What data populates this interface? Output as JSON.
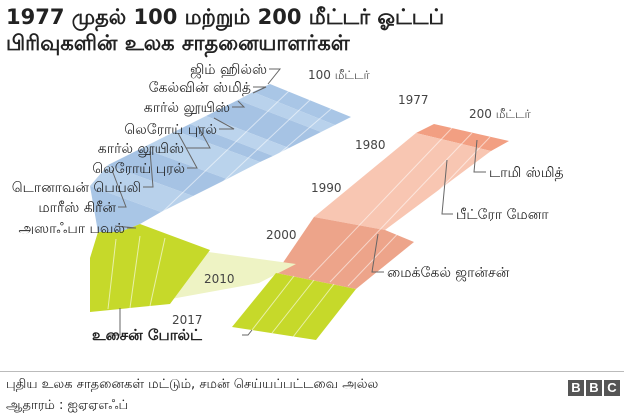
{
  "title": {
    "line1": "1977 முதல் 100 மற்றும் 200 மீட்டர் ஓட்டப்",
    "line2": "பிரிவுகளின் உலக சாதனையாளர்கள்"
  },
  "chart_data": {
    "type": "timeline",
    "years": {
      "top": "1977",
      "labels": [
        {
          "text": "1980",
          "value": 1980
        },
        {
          "text": "1990",
          "value": 1990
        },
        {
          "text": "2000",
          "value": 2000
        },
        {
          "text": "2010",
          "value": 2010
        },
        {
          "text": "2017",
          "value": 2017
        }
      ]
    },
    "series": [
      {
        "name": "100 மீட்டர்",
        "holders": [
          {
            "name": "ஜிம் ஹில்ஸ்"
          },
          {
            "name": "கேல்வின் ஸ்மித்"
          },
          {
            "name": "கார்ல் லூயிஸ்"
          },
          {
            "name": "லெரோய் புரல்"
          },
          {
            "name": "கார்ல் லூயிஸ்"
          },
          {
            "name": "லெரோய் புரல்"
          },
          {
            "name": "டொனாவன் பெய்லி"
          },
          {
            "name": "மாரீஸ் கிரீன்"
          },
          {
            "name": "அஸாஃபா பவல்"
          }
        ]
      },
      {
        "name": "200 மீட்டர்",
        "holders": [
          {
            "name": "டாமி ஸ்மித்"
          },
          {
            "name": "பீட்ரோ மேனா"
          },
          {
            "name": "மைக்கேல் ஜான்சன்"
          }
        ]
      }
    ],
    "shared_holder": "உசைன் போல்ட்",
    "colors": {
      "m100": "#b4cfe8",
      "m200": "#f6bba5",
      "bolt": "#c6d92a",
      "overlap": "#eef3c4"
    }
  },
  "footer": {
    "note": "புதிய உலக சாதனைகள் மட்டும், சமன் செய்யப்பட்டவை அல்ல",
    "source": "ஆதாரம் : ஐஏஏஎஃப்",
    "logo": [
      "B",
      "B",
      "C"
    ]
  }
}
